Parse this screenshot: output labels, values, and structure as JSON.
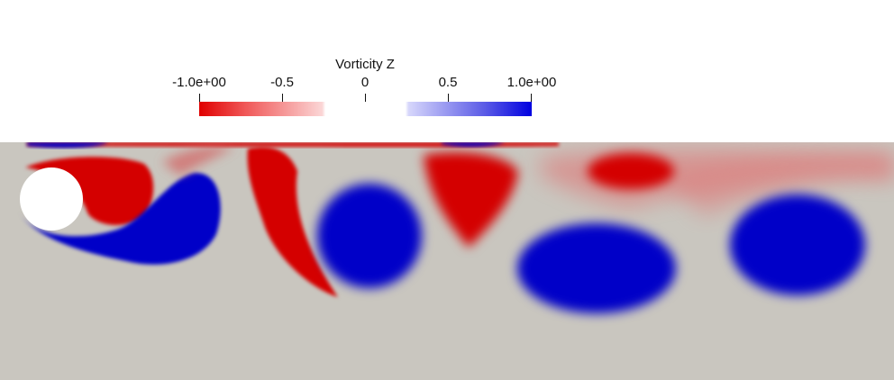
{
  "legend": {
    "title": "Vorticity Z",
    "ticks": [
      "-1.0e+00",
      "-0.5",
      "0",
      "0.5",
      "1.0e+00"
    ]
  },
  "colors": {
    "negative": "#d40000",
    "positive": "#0000c8",
    "zero": "#c9c6bf",
    "background": "#ffffff",
    "obstacle": "#ffffff"
  }
}
